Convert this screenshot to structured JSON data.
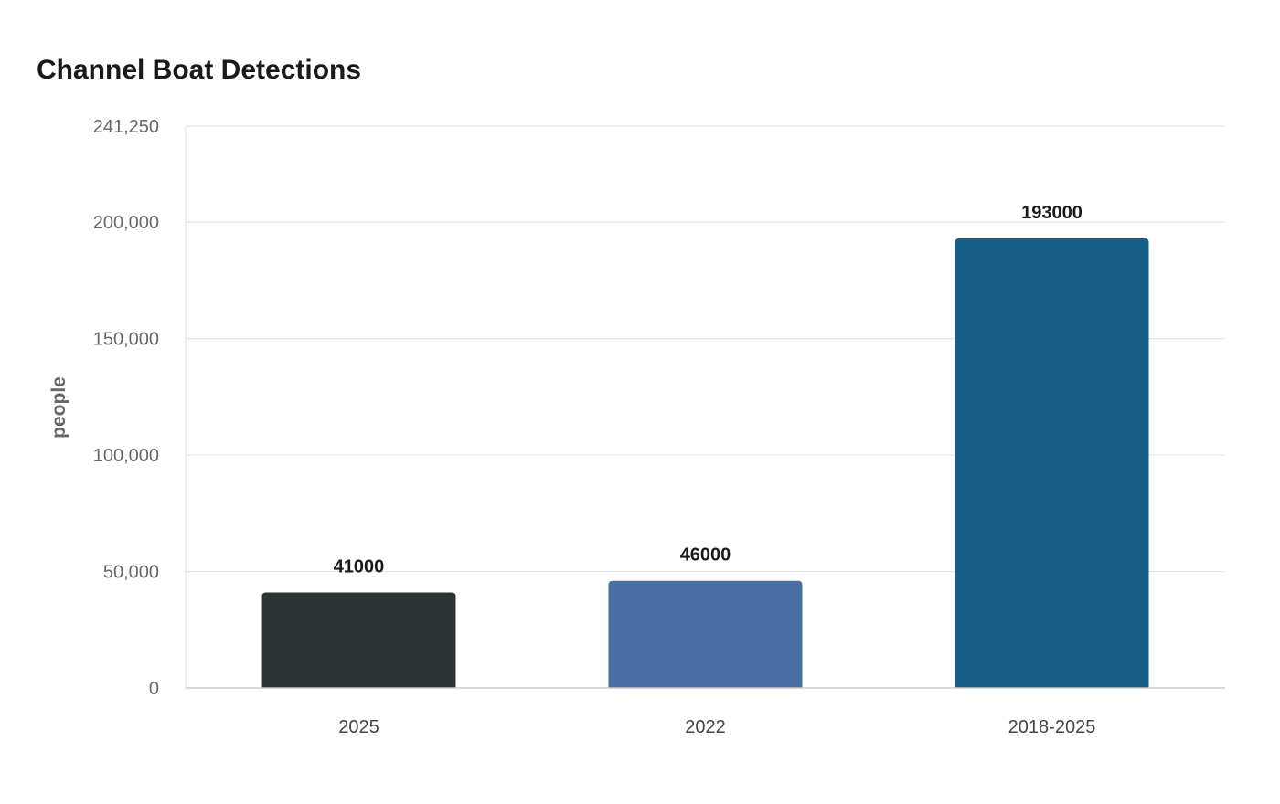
{
  "chart_data": {
    "type": "bar",
    "title": "Channel Boat Detections",
    "xlabel": "",
    "ylabel": "people",
    "categories": [
      "2025",
      "2022",
      "2018-2025"
    ],
    "values": [
      41000,
      46000,
      193000
    ],
    "data_labels": [
      "41000",
      "46000",
      "193000"
    ],
    "colors": [
      "#2d3436",
      "#4a6fa5",
      "#166088"
    ],
    "ylim": [
      0,
      241250
    ],
    "yticks": [
      0,
      50000,
      100000,
      150000,
      200000,
      241250
    ],
    "ytick_labels": [
      "0",
      "50,000",
      "100,000",
      "150,000",
      "200,000",
      "241,250"
    ],
    "grid": true,
    "legend": "none"
  }
}
